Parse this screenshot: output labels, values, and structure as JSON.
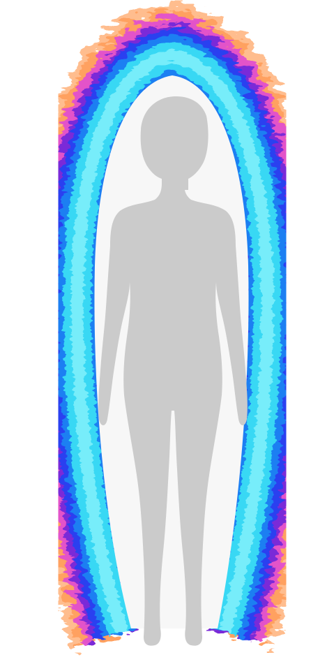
{
  "image": {
    "background_color": "#ffffff",
    "aura_colors": {
      "outer_peach": "#ffb27a",
      "orange": "#ff8a3a",
      "magenta": "#e24fcf",
      "violet": "#7a2bd8",
      "royal_blue": "#2a3ff0",
      "blue": "#1f7ff2",
      "cyan": "#38d8f4",
      "light_cyan": "#7ef0fb",
      "inner_halo": "#f7f7f7"
    },
    "silhouette_color": "#cbcbcb",
    "icons": {
      "aura": "aura-field-icon",
      "figure": "human-silhouette-icon"
    }
  }
}
